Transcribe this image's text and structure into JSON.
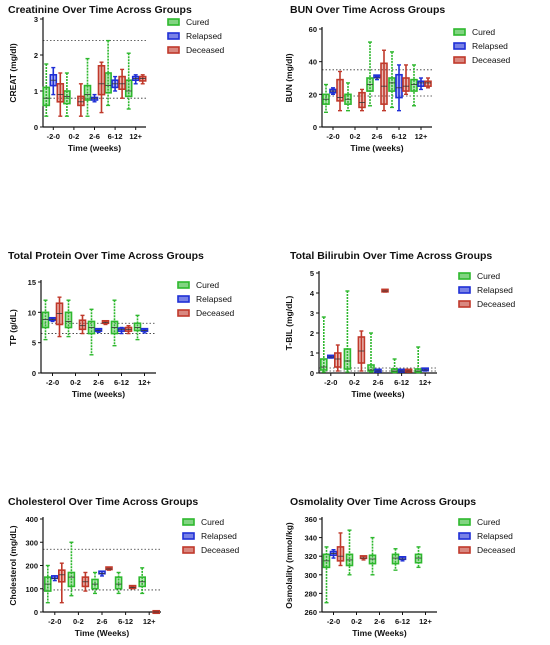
{
  "colors": {
    "Cured": "#2eb82e",
    "Relapsed": "#1f2fd6",
    "Deceased": "#c0392b"
  },
  "legend": [
    "Cured",
    "Relapsed",
    "Deceased"
  ],
  "chart_data": [
    {
      "type": "box",
      "title": "Creatinine Over Time Across Groups",
      "xlabel": "Time (weeks)",
      "ylabel": "CREAT (mg/dl)",
      "ylim": [
        0,
        3
      ],
      "yticks": [
        0,
        1,
        2,
        3
      ],
      "categories": [
        "-2-0",
        "0-2",
        "2-6",
        "6-12",
        "12+"
      ],
      "ref_lines": [
        2.4,
        0.8
      ],
      "legend_position": "right",
      "series": [
        {
          "name": "Cured",
          "boxes": [
            [
              0.3,
              0.6,
              0.8,
              1.1,
              1.75
            ],
            [
              0.3,
              0.65,
              0.85,
              1.0,
              1.5
            ],
            [
              0.3,
              0.75,
              0.9,
              1.15,
              1.9
            ],
            [
              0.6,
              0.95,
              1.15,
              1.5,
              2.4
            ],
            [
              0.5,
              0.85,
              1.0,
              1.3,
              2.05
            ]
          ]
        },
        {
          "name": "Relapsed",
          "boxes": [
            [
              0.9,
              1.15,
              1.3,
              1.45,
              1.65
            ],
            null,
            [
              0.7,
              0.75,
              0.8,
              0.82,
              0.9
            ],
            [
              1.0,
              1.1,
              1.2,
              1.3,
              1.4
            ],
            [
              1.2,
              1.3,
              1.35,
              1.4,
              1.45
            ]
          ]
        },
        {
          "name": "Deceased",
          "boxes": [
            [
              0.3,
              0.7,
              0.9,
              1.2,
              1.5
            ],
            [
              0.3,
              0.6,
              0.7,
              0.85,
              1.2
            ],
            [
              0.4,
              0.9,
              1.2,
              1.7,
              1.8
            ],
            [
              0.8,
              1.05,
              1.2,
              1.4,
              1.6
            ],
            [
              1.2,
              1.28,
              1.35,
              1.4,
              1.45
            ]
          ]
        }
      ]
    },
    {
      "type": "box",
      "title": "BUN Over Time Across Groups",
      "xlabel": "Time (weeks)",
      "ylabel": "BUN (mg/dl)",
      "ylim": [
        0,
        60
      ],
      "yticks": [
        0,
        20,
        40,
        60
      ],
      "categories": [
        "-2-0",
        "0-2",
        "2-6",
        "6-12",
        "12+"
      ],
      "ref_lines": [
        35,
        19
      ],
      "legend_position": "right",
      "series": [
        {
          "name": "Cured",
          "boxes": [
            [
              9,
              14,
              17,
              20,
              26
            ],
            [
              10,
              14,
              17,
              20,
              27
            ],
            [
              13,
              22,
              26,
              30,
              52
            ],
            [
              12,
              22,
              27,
              30,
              46
            ],
            [
              13,
              22,
              26,
              29,
              38
            ]
          ]
        },
        {
          "name": "Relapsed",
          "boxes": [
            [
              20,
              21,
              22,
              23,
              24
            ],
            null,
            [
              29,
              30,
              30,
              31,
              31
            ],
            [
              10,
              18,
              24,
              32,
              38
            ],
            [
              23,
              25,
              27,
              28,
              30
            ]
          ]
        },
        {
          "name": "Deceased",
          "boxes": [
            [
              10,
              16,
              18,
              29,
              34
            ],
            [
              10,
              12,
              15,
              21,
              23
            ],
            [
              10,
              14,
              25,
              39,
              47
            ],
            [
              20,
              22,
              25,
              30,
              38
            ],
            [
              24,
              25,
              27,
              28,
              30
            ]
          ]
        }
      ]
    },
    {
      "type": "box",
      "title": "Total Protein Over Time Across Groups",
      "xlabel": "Time (weeks)",
      "ylabel": "TP (g/dL)",
      "ylim": [
        0,
        15
      ],
      "yticks": [
        0,
        5,
        10,
        15
      ],
      "categories": [
        "-2-0",
        "0-2",
        "2-6",
        "6-12",
        "12+"
      ],
      "ref_lines": [
        8.2,
        6.5
      ],
      "legend_position": "right",
      "series": [
        {
          "name": "Cured",
          "boxes": [
            [
              5.5,
              7.5,
              8.8,
              10,
              12
            ],
            [
              6,
              7.5,
              8.5,
              10,
              12
            ],
            [
              3,
              6.5,
              7.5,
              8.5,
              10.5
            ],
            [
              4.5,
              6.5,
              7.5,
              8.5,
              12
            ],
            [
              5.5,
              7,
              7.5,
              8.2,
              9.5
            ]
          ]
        },
        {
          "name": "Relapsed",
          "boxes": [
            [
              8.5,
              8.7,
              8.8,
              8.9,
              9
            ],
            null,
            [
              6.7,
              6.8,
              7,
              7.1,
              7.2
            ],
            [
              6.5,
              6.9,
              7.2,
              7.4,
              7.5
            ],
            [
              6.6,
              6.8,
              7,
              7.1,
              7.2
            ]
          ]
        },
        {
          "name": "Deceased",
          "boxes": [
            [
              6,
              8,
              9.8,
              11.5,
              12.5
            ],
            [
              6.5,
              7.2,
              7.8,
              8.7,
              9.5
            ],
            [
              8,
              8.1,
              8.3,
              8.4,
              8.5
            ],
            [
              6.5,
              6.9,
              7.2,
              7.5,
              7.8
            ],
            null
          ]
        }
      ]
    },
    {
      "type": "box",
      "title": "Total Bilirubin Over Time Across Groups",
      "xlabel": "Time (weeks)",
      "ylabel": "T-BIL (mg/dL)",
      "ylim": [
        0,
        5
      ],
      "yticks": [
        0,
        1,
        2,
        3,
        4,
        5
      ],
      "categories": [
        "-2-0",
        "0-2",
        "2-6",
        "6-12",
        "12+"
      ],
      "ref_lines": [
        0.25,
        0.1
      ],
      "legend_position": "right",
      "series": [
        {
          "name": "Cured",
          "boxes": [
            [
              0.05,
              0.15,
              0.3,
              0.7,
              2.8
            ],
            [
              0.05,
              0.2,
              0.6,
              1.2,
              4.1
            ],
            [
              0.05,
              0.1,
              0.15,
              0.4,
              2.0
            ],
            [
              0.02,
              0.05,
              0.1,
              0.2,
              0.7
            ],
            [
              0.02,
              0.05,
              0.1,
              0.2,
              1.3
            ]
          ]
        },
        {
          "name": "Relapsed",
          "boxes": [
            [
              0.75,
              0.78,
              0.8,
              0.82,
              0.85
            ],
            null,
            [
              0.05,
              0.07,
              0.1,
              0.12,
              0.15
            ],
            [
              0.05,
              0.07,
              0.1,
              0.12,
              0.15
            ],
            [
              0.1,
              0.12,
              0.15,
              0.18,
              0.2
            ]
          ]
        },
        {
          "name": "Deceased",
          "boxes": [
            [
              0.1,
              0.3,
              0.7,
              1.0,
              1.4
            ],
            [
              0.1,
              0.5,
              1.1,
              1.8,
              2.1
            ],
            [
              4.05,
              4.08,
              4.1,
              4.12,
              4.15
            ],
            [
              0.05,
              0.07,
              0.1,
              0.12,
              0.15
            ],
            null
          ]
        }
      ]
    },
    {
      "type": "box",
      "title": "Cholesterol Over Time Across Groups",
      "xlabel": "Time (Weeks)",
      "ylabel": "Cholesterol (mg/dL)",
      "ylim": [
        0,
        400
      ],
      "yticks": [
        0,
        100,
        200,
        300,
        400
      ],
      "categories": [
        "-2-0",
        "0-2",
        "2-6",
        "6-12",
        "12+"
      ],
      "ref_lines": [
        270,
        95
      ],
      "legend_position": "right",
      "series": [
        {
          "name": "Cured",
          "boxes": [
            [
              40,
              90,
              120,
              150,
              200
            ],
            [
              70,
              110,
              150,
              170,
              300
            ],
            [
              80,
              100,
              120,
              140,
              170
            ],
            [
              80,
              100,
              120,
              150,
              170
            ],
            [
              80,
              110,
              130,
              150,
              190
            ]
          ]
        },
        {
          "name": "Relapsed",
          "boxes": [
            [
              135,
              140,
              145,
              150,
              155
            ],
            null,
            [
              155,
              160,
              165,
              170,
              175
            ],
            null,
            null
          ]
        },
        {
          "name": "Deceased",
          "boxes": [
            [
              40,
              130,
              160,
              180,
              210
            ],
            [
              90,
              110,
              130,
              150,
              170
            ],
            [
              180,
              183,
              185,
              188,
              190
            ],
            [
              100,
              103,
              105,
              108,
              110
            ],
            [
              0,
              0,
              0,
              0,
              0
            ]
          ]
        }
      ]
    },
    {
      "type": "box",
      "title": "Osmolality Over Time Across Groups",
      "xlabel": "Time (Weeks)",
      "ylabel": "Osmolality (mmol/kg)",
      "ylim": [
        260,
        360
      ],
      "yticks": [
        260,
        280,
        300,
        320,
        340,
        360
      ],
      "categories": [
        "-2-0",
        "0-2",
        "2-6",
        "6-12",
        "12+"
      ],
      "ref_lines": [],
      "legend_position": "right",
      "series": [
        {
          "name": "Cured",
          "boxes": [
            [
              270,
              308,
              315,
              322,
              330
            ],
            [
              300,
              310,
              316,
              322,
              348
            ],
            [
              300,
              312,
              317,
              321,
              340
            ],
            [
              305,
              312,
              318,
              322,
              328
            ],
            [
              308,
              313,
              318,
              322,
              330
            ]
          ]
        },
        {
          "name": "Relapsed",
          "boxes": [
            [
              318,
              321,
              323,
              325,
              327
            ],
            null,
            null,
            [
              315,
              316,
              317,
              318,
              319
            ],
            null
          ]
        },
        {
          "name": "Deceased",
          "boxes": [
            [
              310,
              315,
              320,
              330,
              345
            ],
            [
              316,
              317,
              318,
              319,
              320
            ],
            null,
            null,
            null
          ]
        }
      ]
    }
  ]
}
